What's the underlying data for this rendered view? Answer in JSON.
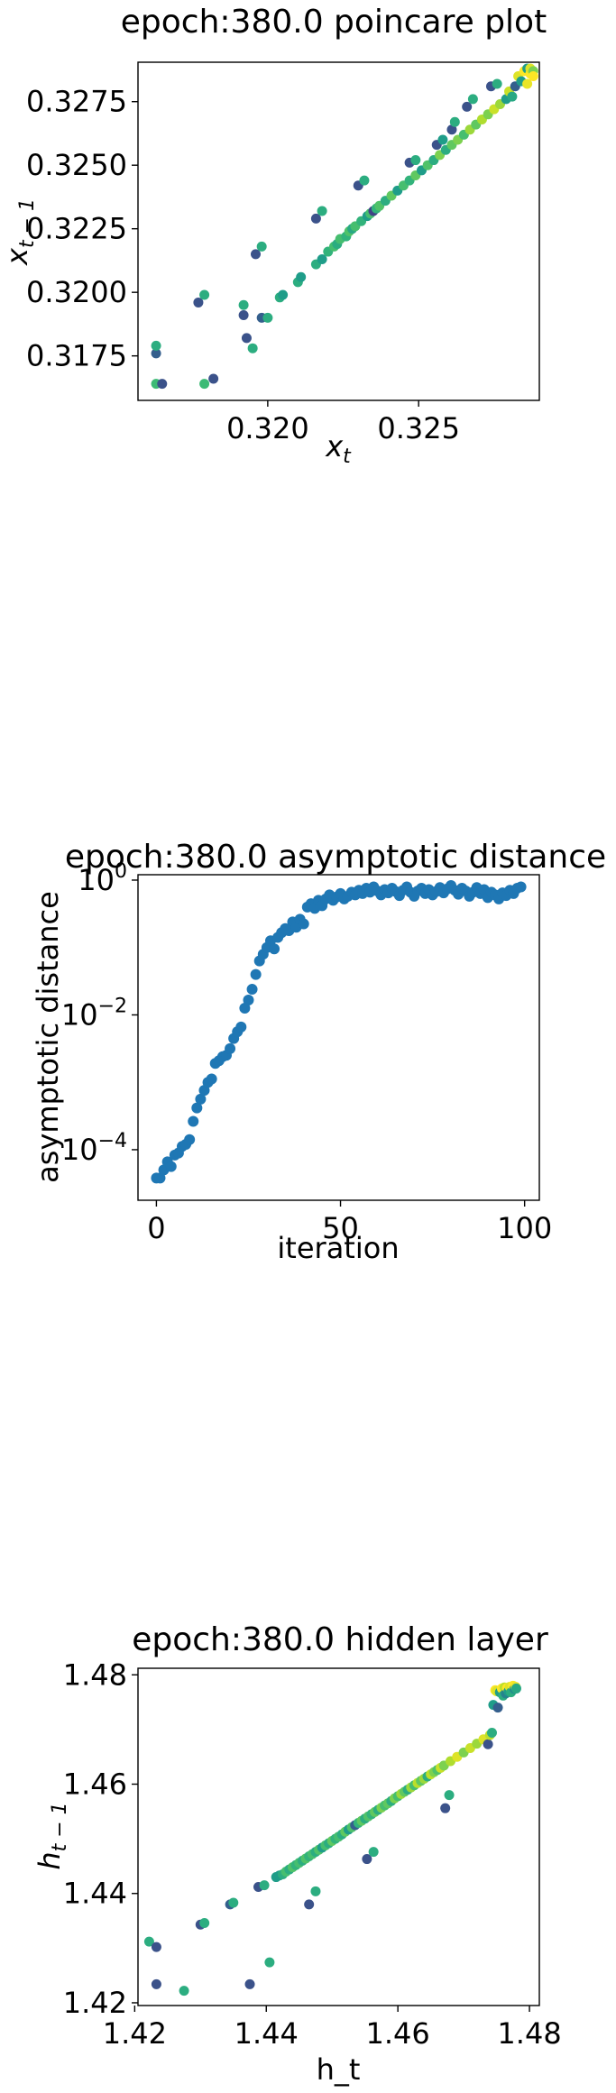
{
  "chart_data": [
    {
      "type": "scatter",
      "title": "epoch:380.0 poincare plot",
      "xlabel": "x",
      "xlabel_sub": "t",
      "ylabel": "x",
      "ylabel_sub": "t − 1",
      "xlim": [
        0.3157,
        0.329
      ],
      "ylim": [
        0.31575,
        0.32905
      ],
      "xticks": [
        0.32,
        0.325
      ],
      "xtick_labels": [
        "0.320",
        "0.325"
      ],
      "yticks": [
        0.3175,
        0.32,
        0.3225,
        0.325,
        0.3275
      ],
      "ytick_labels": [
        "0.3175",
        "0.3200",
        "0.3225",
        "0.3250",
        "0.3275"
      ],
      "colormap": "viridis",
      "points": [
        [
          0.3163,
          0.3176,
          0.3
        ],
        [
          0.3163,
          0.3179,
          0.62
        ],
        [
          0.3163,
          0.3164,
          0.68
        ],
        [
          0.3165,
          0.3164,
          0.25
        ],
        [
          0.3177,
          0.3196,
          0.25
        ],
        [
          0.3179,
          0.3199,
          0.62
        ],
        [
          0.3179,
          0.3164,
          0.68
        ],
        [
          0.3182,
          0.3166,
          0.25
        ],
        [
          0.3192,
          0.3191,
          0.25
        ],
        [
          0.3192,
          0.3195,
          0.62
        ],
        [
          0.3193,
          0.3182,
          0.25
        ],
        [
          0.3195,
          0.3178,
          0.62
        ],
        [
          0.3196,
          0.3215,
          0.25
        ],
        [
          0.3198,
          0.3218,
          0.62
        ],
        [
          0.3198,
          0.319,
          0.3
        ],
        [
          0.32,
          0.319,
          0.62
        ],
        [
          0.3204,
          0.3198,
          0.62
        ],
        [
          0.3205,
          0.3199,
          0.55
        ],
        [
          0.321,
          0.3204,
          0.62
        ],
        [
          0.3211,
          0.3206,
          0.55
        ],
        [
          0.3216,
          0.3229,
          0.25
        ],
        [
          0.3216,
          0.3211,
          0.62
        ],
        [
          0.3218,
          0.3232,
          0.62
        ],
        [
          0.3218,
          0.3213,
          0.55
        ],
        [
          0.322,
          0.3216,
          0.65
        ],
        [
          0.3222,
          0.3218,
          0.7
        ],
        [
          0.3223,
          0.3219,
          0.62
        ],
        [
          0.3224,
          0.3221,
          0.7
        ],
        [
          0.3226,
          0.3222,
          0.65
        ],
        [
          0.3227,
          0.3224,
          0.72
        ],
        [
          0.3228,
          0.3225,
          0.6
        ],
        [
          0.3229,
          0.3226,
          0.7
        ],
        [
          0.323,
          0.3242,
          0.25
        ],
        [
          0.3231,
          0.3228,
          0.65
        ],
        [
          0.3232,
          0.3244,
          0.62
        ],
        [
          0.3233,
          0.323,
          0.55
        ],
        [
          0.3234,
          0.3231,
          0.7
        ],
        [
          0.3235,
          0.3232,
          0.2
        ],
        [
          0.3236,
          0.3233,
          0.65
        ],
        [
          0.3237,
          0.3234,
          0.72
        ],
        [
          0.3239,
          0.3236,
          0.62
        ],
        [
          0.3241,
          0.3238,
          0.75
        ],
        [
          0.3243,
          0.324,
          0.55
        ],
        [
          0.3245,
          0.3242,
          0.7
        ],
        [
          0.3247,
          0.3251,
          0.25
        ],
        [
          0.3247,
          0.3244,
          0.65
        ],
        [
          0.3249,
          0.3252,
          0.62
        ],
        [
          0.3249,
          0.3246,
          0.75
        ],
        [
          0.3251,
          0.3248,
          0.55
        ],
        [
          0.3253,
          0.325,
          0.72
        ],
        [
          0.3255,
          0.3252,
          0.62
        ],
        [
          0.3256,
          0.3258,
          0.25
        ],
        [
          0.3257,
          0.3254,
          0.8
        ],
        [
          0.3258,
          0.326,
          0.55
        ],
        [
          0.3259,
          0.3256,
          0.62
        ],
        [
          0.3261,
          0.3264,
          0.25
        ],
        [
          0.3261,
          0.3258,
          0.75
        ],
        [
          0.3262,
          0.3267,
          0.62
        ],
        [
          0.3263,
          0.326,
          0.8
        ],
        [
          0.3265,
          0.3262,
          0.7
        ],
        [
          0.3266,
          0.3273,
          0.25
        ],
        [
          0.3267,
          0.3264,
          0.85
        ],
        [
          0.3268,
          0.3276,
          0.62
        ],
        [
          0.3269,
          0.3266,
          0.75
        ],
        [
          0.3271,
          0.3268,
          0.88
        ],
        [
          0.3273,
          0.327,
          0.8
        ],
        [
          0.3274,
          0.3281,
          0.25
        ],
        [
          0.3275,
          0.3272,
          0.92
        ],
        [
          0.3276,
          0.3282,
          0.62
        ],
        [
          0.3277,
          0.3274,
          0.85
        ],
        [
          0.3279,
          0.3276,
          0.55
        ],
        [
          0.328,
          0.3279,
          0.92
        ],
        [
          0.3281,
          0.3277,
          0.6
        ],
        [
          0.3282,
          0.3281,
          0.3
        ],
        [
          0.3283,
          0.3285,
          0.95
        ],
        [
          0.3284,
          0.3283,
          0.55
        ],
        [
          0.3285,
          0.3287,
          1.0
        ],
        [
          0.3286,
          0.3282,
          0.97
        ],
        [
          0.3286,
          0.3288,
          0.55
        ],
        [
          0.3287,
          0.3286,
          1.0
        ],
        [
          0.3287,
          0.3288,
          0.95
        ],
        [
          0.3288,
          0.3287,
          0.8
        ],
        [
          0.3288,
          0.3285,
          1.0
        ]
      ]
    },
    {
      "type": "scatter",
      "title": "epoch:380.0 asymptotic distance",
      "xlabel": "iteration",
      "ylabel": "asymptotic distance",
      "yscale": "log",
      "xlim": [
        -5,
        104
      ],
      "ylim_log10": [
        -4.75,
        0.08
      ],
      "xticks": [
        0,
        50,
        100
      ],
      "xtick_labels": [
        "0",
        "50",
        "100"
      ],
      "yticks_log10": [
        -4,
        -2,
        0
      ],
      "ytick_base": "10",
      "ytick_exps": [
        "−4",
        "−2",
        "0"
      ],
      "color": "#1f77b4",
      "x": [
        0,
        1,
        2,
        3,
        4,
        5,
        6,
        7,
        8,
        9,
        10,
        11,
        12,
        13,
        14,
        15,
        16,
        17,
        18,
        19,
        20,
        21,
        22,
        23,
        24,
        25,
        26,
        27,
        28,
        29,
        30,
        31,
        32,
        33,
        34,
        35,
        36,
        37,
        38,
        39,
        40,
        41,
        42,
        43,
        44,
        45,
        46,
        47,
        48,
        49,
        50,
        51,
        52,
        53,
        54,
        55,
        56,
        57,
        58,
        59,
        60,
        61,
        62,
        63,
        64,
        65,
        66,
        67,
        68,
        69,
        70,
        71,
        72,
        73,
        74,
        75,
        76,
        77,
        78,
        79,
        80,
        81,
        82,
        83,
        84,
        85,
        86,
        87,
        88,
        89,
        90,
        91,
        92,
        93,
        94,
        95,
        96,
        97,
        98,
        99
      ],
      "log10_y": [
        -4.42,
        -4.42,
        -4.3,
        -4.18,
        -4.25,
        -4.08,
        -4.05,
        -3.95,
        -3.92,
        -3.85,
        -3.58,
        -3.38,
        -3.25,
        -3.12,
        -3.0,
        -2.95,
        -2.72,
        -2.68,
        -2.62,
        -2.6,
        -2.5,
        -2.35,
        -2.25,
        -2.18,
        -1.9,
        -1.78,
        -1.62,
        -1.4,
        -1.2,
        -1.1,
        -1.0,
        -0.9,
        -1.02,
        -0.85,
        -0.78,
        -0.72,
        -0.75,
        -0.62,
        -0.7,
        -0.58,
        -0.65,
        -0.4,
        -0.35,
        -0.42,
        -0.3,
        -0.38,
        -0.28,
        -0.22,
        -0.3,
        -0.25,
        -0.2,
        -0.28,
        -0.24,
        -0.18,
        -0.22,
        -0.15,
        -0.2,
        -0.12,
        -0.18,
        -0.1,
        -0.16,
        -0.22,
        -0.14,
        -0.19,
        -0.12,
        -0.17,
        -0.23,
        -0.15,
        -0.1,
        -0.18,
        -0.24,
        -0.16,
        -0.12,
        -0.2,
        -0.14,
        -0.22,
        -0.17,
        -0.11,
        -0.19,
        -0.13,
        -0.08,
        -0.15,
        -0.21,
        -0.12,
        -0.16,
        -0.24,
        -0.18,
        -0.11,
        -0.2,
        -0.14,
        -0.26,
        -0.18,
        -0.22,
        -0.28,
        -0.19,
        -0.23,
        -0.15,
        -0.2,
        -0.12,
        -0.1
      ]
    },
    {
      "type": "scatter",
      "title": "epoch:380.0 hidden layer",
      "xlabel": "h_t",
      "ylabel": "h",
      "ylabel_sub": "t − 1",
      "xlim": [
        1.4205,
        1.4815
      ],
      "ylim": [
        1.4195,
        1.4812
      ],
      "xticks": [
        1.42,
        1.44,
        1.46,
        1.48
      ],
      "xtick_labels": [
        "1.42",
        "1.44",
        "1.46",
        "1.48"
      ],
      "yticks": [
        1.42,
        1.44,
        1.46,
        1.48
      ],
      "ytick_labels": [
        "1.42",
        "1.44",
        "1.46",
        "1.48"
      ],
      "colormap": "viridis",
      "points": [
        [
          1.4222,
          1.4312,
          0.62
        ],
        [
          1.4233,
          1.4234,
          0.25
        ],
        [
          1.4233,
          1.4302,
          0.25
        ],
        [
          1.4275,
          1.4222,
          0.62
        ],
        [
          1.43,
          1.4343,
          0.25
        ],
        [
          1.4306,
          1.4346,
          0.62
        ],
        [
          1.4345,
          1.438,
          0.3
        ],
        [
          1.435,
          1.4383,
          0.62
        ],
        [
          1.4375,
          1.4234,
          0.25
        ],
        [
          1.4388,
          1.4412,
          0.25
        ],
        [
          1.4397,
          1.4415,
          0.62
        ],
        [
          1.4405,
          1.4274,
          0.62
        ],
        [
          1.4415,
          1.443,
          0.55
        ],
        [
          1.442,
          1.4433,
          0.55
        ],
        [
          1.4425,
          1.4435,
          0.62
        ],
        [
          1.443,
          1.444,
          0.7
        ],
        [
          1.4435,
          1.4444,
          0.62
        ],
        [
          1.444,
          1.4448,
          0.72
        ],
        [
          1.4445,
          1.4452,
          0.65
        ],
        [
          1.445,
          1.4456,
          0.7
        ],
        [
          1.4455,
          1.446,
          0.62
        ],
        [
          1.446,
          1.4464,
          0.72
        ],
        [
          1.4465,
          1.4468,
          0.65
        ],
        [
          1.4465,
          1.438,
          0.25
        ],
        [
          1.447,
          1.4472,
          0.7
        ],
        [
          1.4475,
          1.4404,
          0.62
        ],
        [
          1.4475,
          1.4476,
          0.62
        ],
        [
          1.448,
          1.448,
          0.72
        ],
        [
          1.4485,
          1.4484,
          0.55
        ],
        [
          1.449,
          1.4488,
          0.7
        ],
        [
          1.4495,
          1.4492,
          0.62
        ],
        [
          1.45,
          1.4496,
          0.75
        ],
        [
          1.4505,
          1.45,
          0.65
        ],
        [
          1.451,
          1.4504,
          0.7
        ],
        [
          1.4515,
          1.4508,
          0.62
        ],
        [
          1.452,
          1.4513,
          0.75
        ],
        [
          1.4525,
          1.4517,
          0.55
        ],
        [
          1.453,
          1.4521,
          0.72
        ],
        [
          1.4535,
          1.4525,
          0.3
        ],
        [
          1.454,
          1.4529,
          0.65
        ],
        [
          1.4545,
          1.4533,
          0.75
        ],
        [
          1.455,
          1.4537,
          0.62
        ],
        [
          1.4553,
          1.4463,
          0.25
        ],
        [
          1.4555,
          1.4541,
          0.72
        ],
        [
          1.456,
          1.4545,
          0.65
        ],
        [
          1.4563,
          1.4476,
          0.62
        ],
        [
          1.4565,
          1.4549,
          0.75
        ],
        [
          1.457,
          1.4553,
          0.62
        ],
        [
          1.4575,
          1.4557,
          0.8
        ],
        [
          1.458,
          1.4561,
          0.7
        ],
        [
          1.4585,
          1.4565,
          0.75
        ],
        [
          1.459,
          1.4569,
          0.62
        ],
        [
          1.4595,
          1.4574,
          0.8
        ],
        [
          1.46,
          1.4578,
          0.7
        ],
        [
          1.4605,
          1.4582,
          0.85
        ],
        [
          1.461,
          1.4586,
          0.75
        ],
        [
          1.4615,
          1.459,
          0.62
        ],
        [
          1.462,
          1.4594,
          0.85
        ],
        [
          1.4625,
          1.4598,
          0.7
        ],
        [
          1.463,
          1.4602,
          0.9
        ],
        [
          1.4635,
          1.4606,
          0.75
        ],
        [
          1.464,
          1.461,
          0.85
        ],
        [
          1.4645,
          1.4614,
          0.62
        ],
        [
          1.465,
          1.4618,
          0.9
        ],
        [
          1.4655,
          1.4622,
          0.8
        ],
        [
          1.466,
          1.4626,
          0.72
        ],
        [
          1.4665,
          1.463,
          0.92
        ],
        [
          1.4672,
          1.4556,
          0.25
        ],
        [
          1.467,
          1.4634,
          0.8
        ],
        [
          1.4678,
          1.458,
          0.62
        ],
        [
          1.468,
          1.4642,
          0.88
        ],
        [
          1.469,
          1.465,
          0.95
        ],
        [
          1.47,
          1.4658,
          0.8
        ],
        [
          1.471,
          1.4666,
          0.92
        ],
        [
          1.472,
          1.4674,
          0.85
        ],
        [
          1.473,
          1.4682,
          0.95
        ],
        [
          1.4737,
          1.4673,
          0.25
        ],
        [
          1.474,
          1.469,
          0.9
        ],
        [
          1.4743,
          1.4694,
          0.62
        ],
        [
          1.4745,
          1.4745,
          0.55
        ],
        [
          1.4748,
          1.4772,
          1.0
        ],
        [
          1.475,
          1.477,
          0.95
        ],
        [
          1.4752,
          1.474,
          0.3
        ],
        [
          1.4755,
          1.4768,
          0.55
        ],
        [
          1.4758,
          1.4775,
          1.0
        ],
        [
          1.476,
          1.4762,
          0.62
        ],
        [
          1.4762,
          1.4777,
          0.9
        ],
        [
          1.4764,
          1.4766,
          0.45
        ],
        [
          1.4766,
          1.4776,
          1.0
        ],
        [
          1.4768,
          1.477,
          0.55
        ],
        [
          1.477,
          1.4778,
          0.95
        ],
        [
          1.4772,
          1.4768,
          0.62
        ],
        [
          1.4775,
          1.478,
          1.0
        ],
        [
          1.4777,
          1.4774,
          0.5
        ],
        [
          1.4779,
          1.4778,
          0.97
        ],
        [
          1.478,
          1.4775,
          0.6
        ]
      ]
    }
  ]
}
